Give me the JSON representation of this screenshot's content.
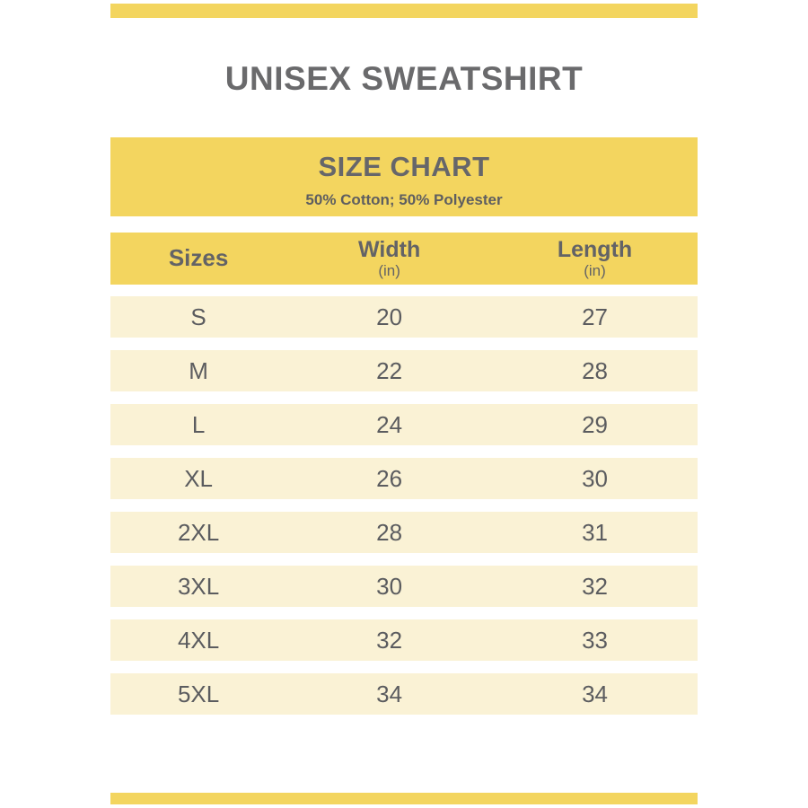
{
  "header": {
    "title": "UNISEX SWEATSHIRT"
  },
  "size_chart": {
    "title": "SIZE CHART",
    "subtitle": "50% Cotton; 50% Polyester"
  },
  "table": {
    "columns": [
      {
        "label": "Sizes",
        "unit": ""
      },
      {
        "label": "Width",
        "unit": "(in)"
      },
      {
        "label": "Length",
        "unit": "(in)"
      }
    ],
    "rows": [
      {
        "size": "S",
        "width": "20",
        "length": "27"
      },
      {
        "size": "M",
        "width": "22",
        "length": "28"
      },
      {
        "size": "L",
        "width": "24",
        "length": "29"
      },
      {
        "size": "XL",
        "width": "26",
        "length": "30"
      },
      {
        "size": "2XL",
        "width": "28",
        "length": "31"
      },
      {
        "size": "3XL",
        "width": "30",
        "length": "32"
      },
      {
        "size": "4XL",
        "width": "32",
        "length": "33"
      },
      {
        "size": "5XL",
        "width": "34",
        "length": "34"
      }
    ]
  },
  "colors": {
    "accent_yellow": "#f3d55f",
    "row_cream": "#faf2d5",
    "title_gray": "#6a6a6c",
    "text_gray": "#5b5c5f"
  }
}
